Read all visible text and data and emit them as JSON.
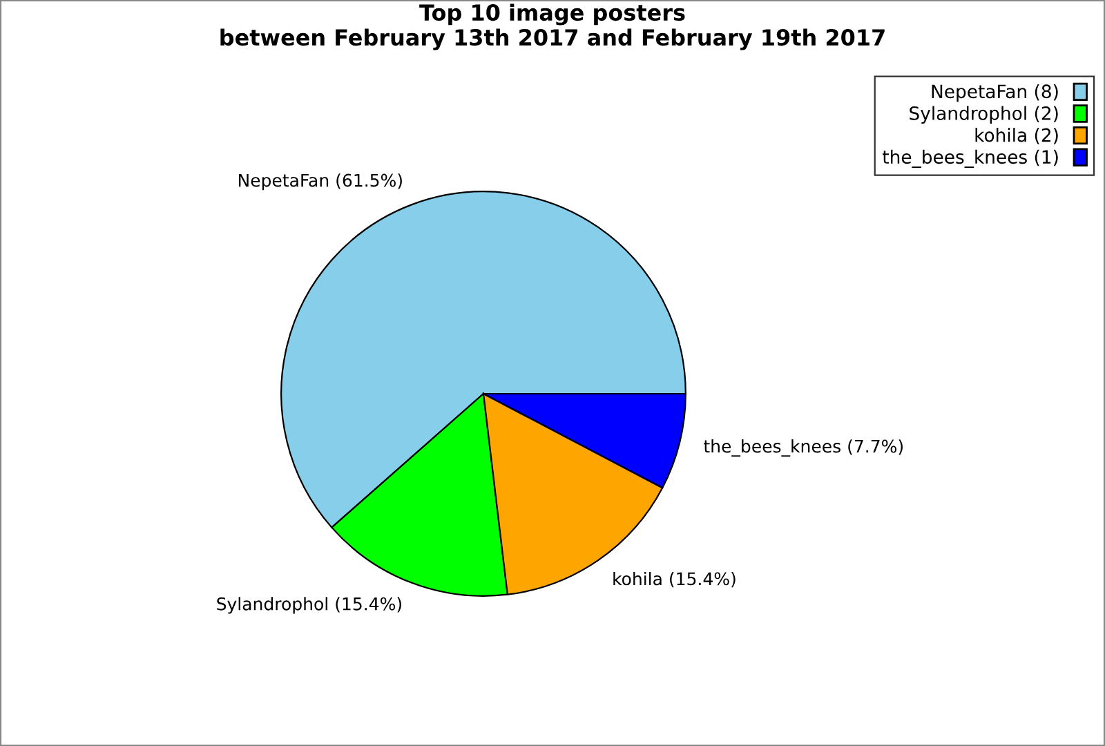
{
  "chart_data": {
    "type": "pie",
    "title": "Top 10 image posters\nbetween February 13th 2017 and February 19th 2017",
    "categories": [
      "NepetaFan (8)",
      "Sylandrophol (2)",
      "kohila (2)",
      "the_bees_knees (1)"
    ],
    "values": [
      61.5,
      15.4,
      15.4,
      7.7
    ],
    "value_labels": [
      "NepetaFan (61.5%)",
      "Sylandrophol (15.4%)",
      "kohila (15.4%)",
      "the_bees_knees (7.7%)"
    ],
    "colors": [
      "#87ceeb",
      "#00ff00",
      "#ffa500",
      "#0000ff"
    ],
    "legend": "top right"
  }
}
